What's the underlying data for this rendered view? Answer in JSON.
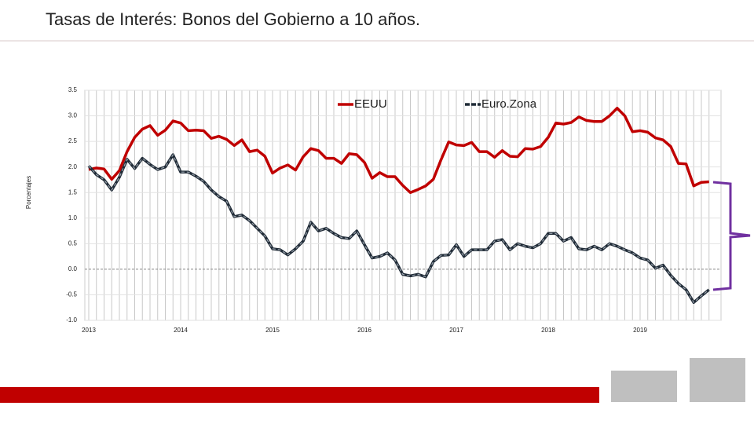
{
  "chart_data": {
    "type": "line",
    "title": "Tasas de Interés: Bonos del Gobierno a 10 años.",
    "y_label": "Porcentajes",
    "categories": [
      "2013",
      null,
      null,
      null,
      null,
      null,
      null,
      null,
      null,
      null,
      null,
      null,
      "2014",
      null,
      null,
      null,
      null,
      null,
      null,
      null,
      null,
      null,
      null,
      null,
      "2015",
      null,
      null,
      null,
      null,
      null,
      null,
      null,
      null,
      null,
      null,
      null,
      "2016",
      null,
      null,
      null,
      null,
      null,
      null,
      null,
      null,
      null,
      null,
      null,
      "2017",
      null,
      null,
      null,
      null,
      null,
      null,
      null,
      null,
      null,
      null,
      null,
      "2018",
      null,
      null,
      null,
      null,
      null,
      null,
      null,
      null,
      null,
      null,
      null,
      "2019",
      null,
      null,
      null,
      null,
      null,
      null,
      null,
      null,
      null
    ],
    "series": [
      {
        "name": "EEUU",
        "color": "#c00000",
        "values": [
          1.95,
          1.98,
          1.96,
          1.76,
          1.93,
          2.3,
          2.58,
          2.74,
          2.81,
          2.62,
          2.72,
          2.9,
          2.86,
          2.71,
          2.72,
          2.71,
          2.56,
          2.6,
          2.54,
          2.42,
          2.53,
          2.3,
          2.33,
          2.21,
          1.88,
          1.98,
          2.04,
          1.94,
          2.2,
          2.36,
          2.32,
          2.17,
          2.17,
          2.07,
          2.26,
          2.24,
          2.09,
          1.78,
          1.89,
          1.81,
          1.81,
          1.64,
          1.5,
          1.56,
          1.63,
          1.76,
          2.14,
          2.49,
          2.43,
          2.42,
          2.48,
          2.3,
          2.3,
          2.19,
          2.32,
          2.21,
          2.2,
          2.36,
          2.35,
          2.4,
          2.58,
          2.86,
          2.84,
          2.87,
          2.98,
          2.91,
          2.89,
          2.89,
          3.0,
          3.15,
          3.0,
          2.69,
          2.71,
          2.68,
          2.57,
          2.53,
          2.4,
          2.07,
          2.06,
          1.63,
          1.7,
          1.71
        ]
      },
      {
        "name": "Euro.Zona",
        "color": "#1f2a36",
        "values": [
          2.02,
          1.85,
          1.75,
          1.55,
          1.8,
          2.15,
          1.97,
          2.17,
          2.05,
          1.95,
          2.0,
          2.24,
          1.9,
          1.9,
          1.82,
          1.72,
          1.55,
          1.42,
          1.33,
          1.03,
          1.06,
          0.95,
          0.8,
          0.65,
          0.4,
          0.38,
          0.28,
          0.4,
          0.55,
          0.92,
          0.75,
          0.8,
          0.7,
          0.62,
          0.6,
          0.75,
          0.48,
          0.22,
          0.25,
          0.32,
          0.18,
          -0.1,
          -0.13,
          -0.1,
          -0.15,
          0.15,
          0.27,
          0.28,
          0.48,
          0.25,
          0.38,
          0.38,
          0.38,
          0.55,
          0.58,
          0.38,
          0.5,
          0.45,
          0.42,
          0.5,
          0.7,
          0.7,
          0.55,
          0.62,
          0.4,
          0.38,
          0.45,
          0.38,
          0.5,
          0.45,
          0.38,
          0.32,
          0.22,
          0.18,
          0.02,
          0.08,
          -0.12,
          -0.28,
          -0.4,
          -0.65,
          -0.52,
          -0.4
        ]
      }
    ],
    "ylim": [
      -1,
      3.5
    ],
    "yticks": [
      {
        "value": 3.5,
        "label": "3.5"
      },
      {
        "value": 3,
        "label": "3.0"
      },
      {
        "value": 2.5,
        "label": "2.5"
      },
      {
        "value": 2,
        "label": "2.0"
      },
      {
        "value": 1.5,
        "label": "1.5"
      },
      {
        "value": 1,
        "label": "1.0"
      },
      0.5,
      {
        "value": 0,
        "label": "0.0"
      },
      -0.5,
      {
        "value": -1,
        "label": "-1.0"
      }
    ],
    "grid": true,
    "legend": "top"
  }
}
